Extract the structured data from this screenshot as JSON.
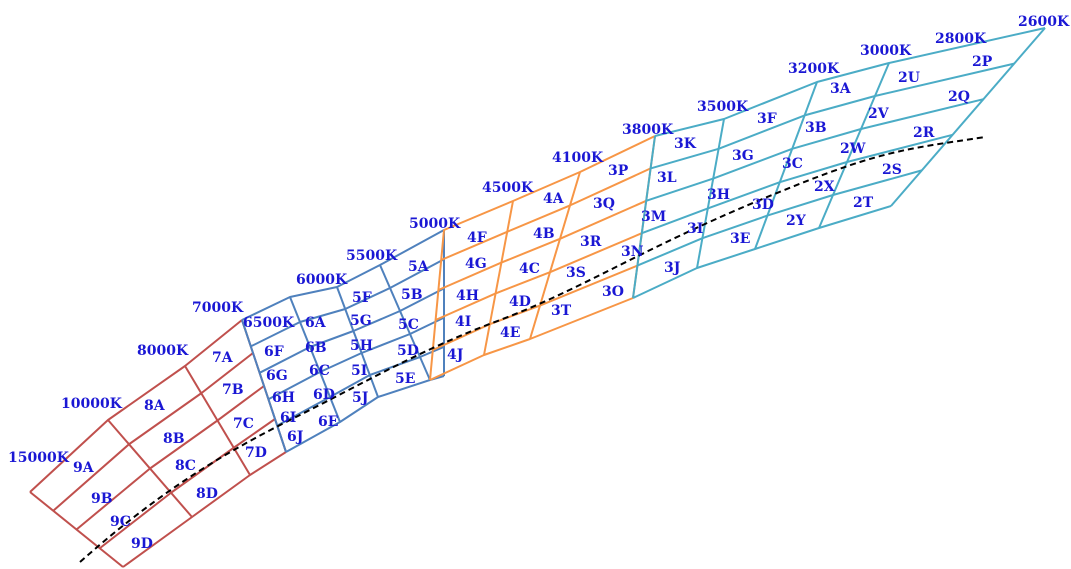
{
  "colors": {
    "label": "#1a17d4",
    "red_group": "#c0504d",
    "blue_group": "#4f81bd",
    "orange_group": "#f79646",
    "teal_group": "#4bacc6",
    "locus": "#000000"
  },
  "temperature_labels": [
    "2600K",
    "2800K",
    "3000K",
    "3200K",
    "3500K",
    "3800K",
    "4100K",
    "4500K",
    "5000K",
    "5500K",
    "6000K",
    "6500K",
    "7000K",
    "8000K",
    "10000K",
    "15000K"
  ],
  "bins": [
    "2P",
    "2Q",
    "2R",
    "2S",
    "2T",
    "2U",
    "2V",
    "2W",
    "2X",
    "2Y",
    "3A",
    "3B",
    "3C",
    "3D",
    "3E",
    "3F",
    "3G",
    "3H",
    "3I",
    "3J",
    "3K",
    "3L",
    "3M",
    "3N",
    "3O",
    "3P",
    "3Q",
    "3R",
    "3S",
    "3T",
    "4A",
    "4B",
    "4C",
    "4D",
    "4E",
    "4F",
    "4G",
    "4H",
    "4I",
    "4J",
    "5A",
    "5B",
    "5C",
    "5D",
    "5E",
    "5F",
    "5G",
    "5H",
    "5I",
    "5J",
    "6A",
    "6B",
    "6C",
    "6D",
    "6E",
    "6F",
    "6G",
    "6H",
    "6I",
    "6J",
    "7A",
    "7B",
    "7C",
    "7D",
    "8A",
    "8B",
    "8C",
    "8D",
    "9A",
    "9B",
    "9C",
    "9D"
  ]
}
